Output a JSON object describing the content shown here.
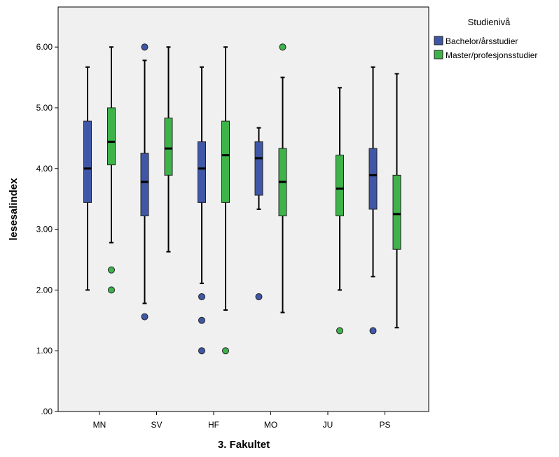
{
  "chart_data": {
    "type": "boxplot",
    "xlabel": "3. Fakultet",
    "ylabel": "lesesalindex",
    "ylim": [
      0,
      6.5
    ],
    "yticks": [
      {
        "value": 0,
        "label": ".00"
      },
      {
        "value": 1,
        "label": "1.00"
      },
      {
        "value": 2,
        "label": "2.00"
      },
      {
        "value": 3,
        "label": "3.00"
      },
      {
        "value": 4,
        "label": "4.00"
      },
      {
        "value": 5,
        "label": "5.00"
      },
      {
        "value": 6,
        "label": "6.00"
      }
    ],
    "categories": [
      "MN",
      "SV",
      "HF",
      "MO",
      "JU",
      "PS"
    ],
    "grid": false,
    "plot_background": "#f0f0f0",
    "legend": {
      "title": "Studienivå",
      "position": "right"
    },
    "series": [
      {
        "name": "Bachelor/årsstudier",
        "color": "#3f57a6",
        "boxes": [
          {
            "category": "MN",
            "min": 2.0,
            "q1": 3.44,
            "median": 4.0,
            "q3": 4.78,
            "max": 5.67,
            "outliers": []
          },
          {
            "category": "SV",
            "min": 1.78,
            "q1": 3.22,
            "median": 3.78,
            "q3": 4.25,
            "max": 5.78,
            "outliers": [
              6.0,
              1.56
            ]
          },
          {
            "category": "HF",
            "min": 2.11,
            "q1": 3.44,
            "median": 4.0,
            "q3": 4.44,
            "max": 5.67,
            "outliers": [
              1.89,
              1.5,
              1.0
            ]
          },
          {
            "category": "MO",
            "min": 3.33,
            "q1": 3.56,
            "median": 4.17,
            "q3": 4.44,
            "max": 4.67,
            "outliers": [
              1.89
            ]
          },
          null,
          {
            "category": "PS",
            "min": 2.22,
            "q1": 3.33,
            "median": 3.89,
            "q3": 4.33,
            "max": 5.67,
            "outliers": [
              1.33
            ]
          }
        ]
      },
      {
        "name": "Master/profesjonsstudier",
        "color": "#3db34a",
        "boxes": [
          {
            "category": "MN",
            "min": 2.78,
            "q1": 4.06,
            "median": 4.44,
            "q3": 5.0,
            "max": 6.0,
            "outliers": [
              2.33,
              2.0
            ]
          },
          {
            "category": "SV",
            "min": 2.63,
            "q1": 3.89,
            "median": 4.33,
            "q3": 4.83,
            "max": 6.0,
            "outliers": []
          },
          {
            "category": "HF",
            "min": 1.67,
            "q1": 3.44,
            "median": 4.22,
            "q3": 4.78,
            "max": 6.0,
            "outliers": [
              1.0
            ]
          },
          {
            "category": "MO",
            "min": 1.63,
            "q1": 3.22,
            "median": 3.78,
            "q3": 4.33,
            "max": 5.5,
            "outliers": [
              6.0
            ]
          },
          {
            "category": "JU",
            "min": 2.0,
            "q1": 3.22,
            "median": 3.67,
            "q3": 4.22,
            "max": 5.33,
            "outliers": [
              1.33
            ]
          },
          {
            "category": "PS",
            "min": 1.38,
            "q1": 2.67,
            "median": 3.25,
            "q3": 3.89,
            "max": 5.56,
            "outliers": []
          }
        ]
      }
    ]
  }
}
